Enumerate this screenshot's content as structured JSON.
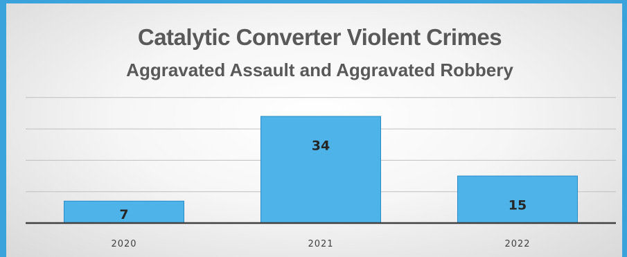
{
  "chart_data": {
    "type": "bar",
    "title": "Catalytic Converter Violent Crimes",
    "subtitle": "Aggravated Assault and Aggravated Robbery",
    "categories": [
      "2020",
      "2021",
      "2022"
    ],
    "values": [
      7,
      34,
      15
    ],
    "data_labels": [
      "7",
      "34",
      "15"
    ],
    "xlabel": "",
    "ylabel": "",
    "ylim": [
      0,
      40
    ],
    "grid": true,
    "legend": "none",
    "bar_color": "#4db3e8",
    "bar_edge_color": "#2a8bc6"
  }
}
